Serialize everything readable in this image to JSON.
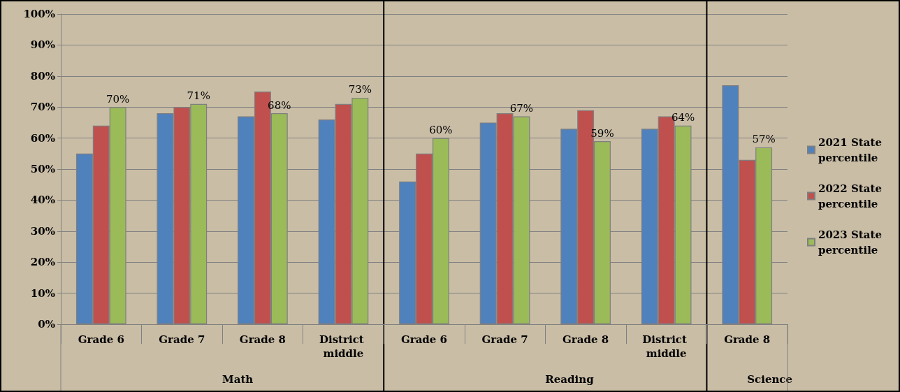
{
  "chart_data": {
    "type": "bar",
    "categories": [
      "Grade 6",
      "Grade 7",
      "Grade 8",
      "District middle",
      "Grade 6",
      "Grade 7",
      "Grade 8",
      "District middle",
      "Grade 8"
    ],
    "series": [
      {
        "name": "2021 State percentile",
        "color": "#4f81bd",
        "values": [
          55,
          68,
          67,
          66,
          46,
          65,
          63,
          63,
          77
        ]
      },
      {
        "name": "2022 State percentile",
        "color": "#c0504d",
        "values": [
          64,
          70,
          75,
          71,
          55,
          68,
          69,
          67,
          53
        ]
      },
      {
        "name": "2023 State percentile",
        "color": "#9bbb59",
        "values": [
          70,
          71,
          68,
          73,
          60,
          67,
          59,
          64,
          57
        ],
        "value_labels": [
          "70%",
          "71%",
          "68%",
          "73%",
          "60%",
          "67%",
          "59%",
          "64%",
          "57%"
        ]
      }
    ],
    "ylim": [
      0,
      100
    ],
    "yticks": [
      {
        "value": 0,
        "label": "0%"
      },
      {
        "value": 10,
        "label": "10%"
      },
      {
        "value": 20,
        "label": "20%"
      },
      {
        "value": 30,
        "label": "30%"
      },
      {
        "value": 40,
        "label": "40%"
      },
      {
        "value": 50,
        "label": "50%"
      },
      {
        "value": 60,
        "label": "60%"
      },
      {
        "value": 70,
        "label": "70%"
      },
      {
        "value": 80,
        "label": "80%"
      },
      {
        "value": 90,
        "label": "90%"
      },
      {
        "value": 100,
        "label": "100%"
      }
    ],
    "grid": "y",
    "legend": "right",
    "annotations": [
      "Math",
      "Reading",
      "Science"
    ]
  }
}
